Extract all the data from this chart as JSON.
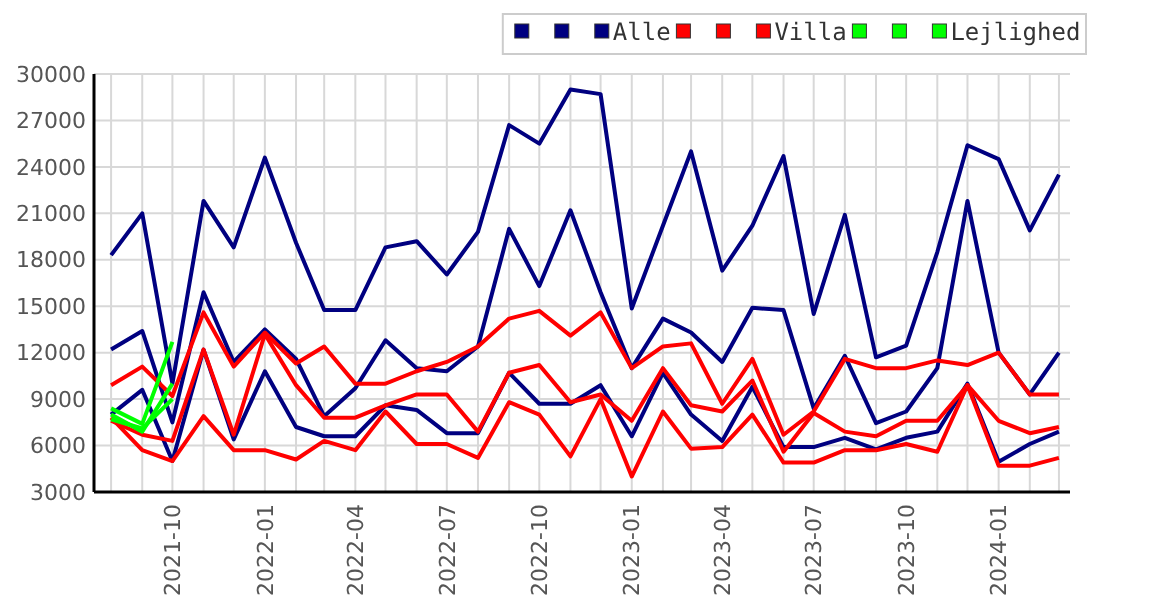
{
  "chart_data": {
    "type": "line",
    "x": [
      "2021-08",
      "2021-09",
      "2021-10",
      "2021-11",
      "2021-12",
      "2022-01",
      "2022-02",
      "2022-03",
      "2022-04",
      "2022-05",
      "2022-06",
      "2022-07",
      "2022-08",
      "2022-09",
      "2022-10",
      "2022-11",
      "2022-12",
      "2023-01",
      "2023-02",
      "2023-03",
      "2023-04",
      "2023-05",
      "2023-06",
      "2023-07",
      "2023-08",
      "2023-09",
      "2023-10",
      "2023-11",
      "2023-12",
      "2024-01",
      "2024-02",
      "2024-03"
    ],
    "xlim": [
      "2021-07-15",
      "2024-03-12"
    ],
    "xticks": [
      {
        "value": "2021-08",
        "label": null
      },
      {
        "value": "2021-09",
        "label": null
      },
      "2021-10",
      {
        "value": "2021-11",
        "label": null
      },
      {
        "value": "2021-12",
        "label": null
      },
      "2022-01",
      {
        "value": "2022-02",
        "label": null
      },
      {
        "value": "2022-03",
        "label": null
      },
      "2022-04",
      {
        "value": "2022-05",
        "label": null
      },
      {
        "value": "2022-06",
        "label": null
      },
      "2022-07",
      {
        "value": "2022-08",
        "label": null
      },
      {
        "value": "2022-09",
        "label": null
      },
      "2022-10",
      {
        "value": "2022-11",
        "label": null
      },
      {
        "value": "2022-12",
        "label": null
      },
      "2023-01",
      {
        "value": "2023-02",
        "label": null
      },
      {
        "value": "2023-03",
        "label": null
      },
      "2023-04",
      {
        "value": "2023-05",
        "label": null
      },
      {
        "value": "2023-06",
        "label": null
      },
      "2023-07",
      {
        "value": "2023-08",
        "label": null
      },
      {
        "value": "2023-09",
        "label": null
      },
      "2023-10",
      {
        "value": "2023-11",
        "label": null
      },
      {
        "value": "2023-12",
        "label": null
      },
      "2024-01",
      {
        "value": "2024-02",
        "label": null
      },
      {
        "value": "2024-03",
        "label": null
      }
    ],
    "ylim": [
      3000,
      30000
    ],
    "yticks": [
      3000,
      6000,
      9000,
      12000,
      15000,
      18000,
      21000,
      24000,
      27000,
      30000
    ],
    "grid": true,
    "legend": "top right",
    "marker": "none",
    "line_style": "solid",
    "series": [
      {
        "color": "#000080",
        "values": [
          18300,
          21000,
          10000,
          21800,
          18800,
          24600,
          19100,
          14750,
          14750,
          18800,
          19200,
          17050,
          19800,
          26700,
          25500,
          29000,
          28700,
          14850,
          20200,
          25000,
          17300,
          20200,
          24700,
          14500,
          20900,
          11700,
          12450,
          18500,
          25400,
          24500,
          19900,
          23500
        ]
      },
      {
        "color": "#000080",
        "values": [
          12200,
          13400,
          7500,
          15900,
          11400,
          13500,
          11600,
          7900,
          9700,
          12800,
          11000,
          10800,
          12400,
          20000,
          16300,
          21200,
          15900,
          11000,
          14200,
          13300,
          11400,
          14900,
          14750,
          8400,
          11800,
          7450,
          8200,
          11000,
          21800,
          12000,
          9300,
          12000
        ]
      },
      {
        "name": "Alle",
        "color": "#000080",
        "values": [
          8000,
          9600,
          5000,
          12200,
          6400,
          10800,
          7200,
          6600,
          6600,
          8600,
          8300,
          6800,
          6800,
          10700,
          8700,
          8700,
          9900,
          6600,
          10700,
          8000,
          6300,
          9800,
          5900,
          5900,
          6500,
          5750,
          6500,
          6900,
          10000,
          4950,
          6100,
          6900
        ]
      },
      {
        "color": "#ff0000",
        "values": [
          9900,
          11100,
          9200,
          14600,
          11100,
          13300,
          11300,
          12400,
          10000,
          10000,
          10800,
          11400,
          12400,
          14200,
          14700,
          13100,
          14600,
          11000,
          12400,
          12600,
          8700,
          11600,
          6700,
          8200,
          11600,
          11000,
          11000,
          11500,
          11200,
          12000,
          9300,
          9300
        ]
      },
      {
        "color": "#ff0000",
        "values": [
          7600,
          6700,
          6300,
          12200,
          6700,
          13200,
          9900,
          7800,
          7800,
          8600,
          9300,
          9300,
          6900,
          10700,
          11200,
          8800,
          9300,
          7600,
          11000,
          8600,
          8200,
          10200,
          5600,
          8100,
          6900,
          6600,
          7600,
          7600,
          9900,
          7600,
          6800,
          7200
        ]
      },
      {
        "name": "Villa",
        "color": "#ff0000",
        "values": [
          7800,
          5700,
          5000,
          7900,
          5700,
          5700,
          5100,
          6300,
          5700,
          8200,
          6100,
          6100,
          5200,
          8800,
          8000,
          5300,
          9000,
          4000,
          8200,
          5800,
          5900,
          8000,
          4900,
          4900,
          5700,
          5700,
          6100,
          5600,
          9900,
          4700,
          4700,
          5200
        ]
      },
      {
        "color": "#00ff00",
        "values": [
          8400,
          7400,
          12700,
          null,
          null,
          null,
          null,
          null,
          null,
          null,
          null,
          null,
          null,
          null,
          null,
          null,
          null,
          null,
          null,
          null,
          null,
          null,
          null,
          null,
          null,
          null,
          null,
          null,
          null,
          null,
          null,
          null
        ]
      },
      {
        "color": "#00ff00",
        "values": [
          8000,
          6900,
          10000,
          null,
          null,
          null,
          null,
          null,
          null,
          null,
          null,
          null,
          null,
          null,
          null,
          null,
          null,
          null,
          null,
          null,
          null,
          null,
          null,
          null,
          null,
          null,
          null,
          null,
          null,
          null,
          null,
          null
        ]
      },
      {
        "name": "Lejlighed",
        "color": "#00ff00",
        "values": [
          7700,
          7100,
          9000,
          null,
          null,
          null,
          null,
          null,
          null,
          null,
          null,
          null,
          null,
          null,
          null,
          null,
          null,
          null,
          null,
          null,
          null,
          null,
          null,
          null,
          null,
          null,
          null,
          null,
          null,
          null,
          null,
          null
        ]
      }
    ]
  }
}
